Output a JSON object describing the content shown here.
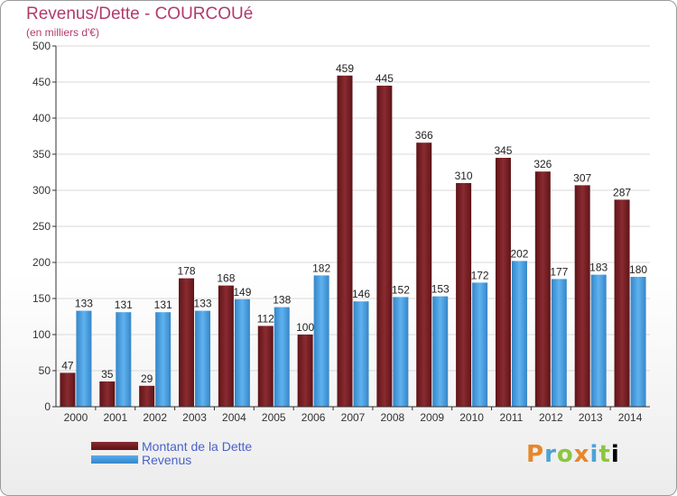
{
  "header": {
    "title": "Revenus/Dette - COURCOUé",
    "subtitle": "(en milliers d'€)"
  },
  "legend": {
    "dette_label": "Montant de la Dette",
    "revenus_label": "Revenus"
  },
  "logo": {
    "text": "Proxiti"
  },
  "colors": {
    "dette": "#6e1c1f",
    "dette_light": "#8a2b31",
    "revenus": "#3d8fd1",
    "revenus_light": "#5aaceb",
    "grid": "#d9d9d9",
    "axis": "#333333"
  },
  "chart_data": {
    "type": "bar",
    "title": "Revenus/Dette - COURCOUé",
    "subtitle": "(en milliers d'€)",
    "categories": [
      "2000",
      "2001",
      "2002",
      "2003",
      "2004",
      "2005",
      "2006",
      "2007",
      "2008",
      "2009",
      "2010",
      "2011",
      "2012",
      "2013",
      "2014"
    ],
    "series": [
      {
        "name": "Montant de la Dette",
        "values": [
          47,
          35,
          29,
          178,
          168,
          112,
          100,
          459,
          445,
          366,
          310,
          345,
          326,
          307,
          287
        ]
      },
      {
        "name": "Revenus",
        "values": [
          133,
          131,
          131,
          133,
          149,
          138,
          182,
          146,
          152,
          153,
          172,
          202,
          177,
          183,
          180
        ]
      }
    ],
    "ylim": [
      0,
      500
    ],
    "yticks": [
      0,
      50,
      100,
      150,
      200,
      250,
      300,
      350,
      400,
      450,
      500
    ],
    "grid": true,
    "legend_position": "bottom-left"
  }
}
